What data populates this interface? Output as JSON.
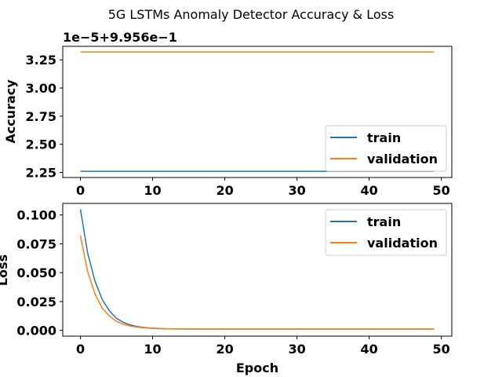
{
  "figure": {
    "suptitle": "5G LSTMs Anomaly Detector Accuracy & Loss",
    "accuracy_offset": "1e−5+9.956e−1"
  },
  "chart_data": [
    {
      "type": "line",
      "title": "",
      "xlabel": "",
      "ylabel": "Accuracy",
      "offset_text": "1e−5+9.956e−1",
      "xlim": [
        -2.45,
        51.45
      ],
      "ylim": [
        2.205,
        3.37
      ],
      "x_ticks": [
        0,
        10,
        20,
        30,
        40,
        50
      ],
      "y_ticks": [
        2.25,
        2.5,
        2.75,
        3.0,
        3.25
      ],
      "y_tick_labels": [
        "2.25",
        "2.50",
        "2.75",
        "3.00",
        "3.25"
      ],
      "legend_position": "lower-right",
      "grid": false,
      "series": [
        {
          "name": "train",
          "color": "#1f77b4",
          "x": [
            0,
            49
          ],
          "y": [
            2.26,
            2.26
          ],
          "note_units": "x1e-5 offset 0.9956"
        },
        {
          "name": "validation",
          "color": "#ff7f0e",
          "x": [
            0,
            49
          ],
          "y": [
            3.32,
            3.32
          ]
        }
      ]
    },
    {
      "type": "line",
      "title": "",
      "xlabel": "Epoch",
      "ylabel": "Loss",
      "xlim": [
        -2.45,
        51.45
      ],
      "ylim": [
        -0.005,
        0.11
      ],
      "x_ticks": [
        0,
        10,
        20,
        30,
        40,
        50
      ],
      "y_ticks": [
        0.0,
        0.025,
        0.05,
        0.075,
        0.1
      ],
      "y_tick_labels": [
        "0.000",
        "0.025",
        "0.050",
        "0.075",
        "0.100"
      ],
      "legend_position": "upper-right",
      "grid": false,
      "series": [
        {
          "name": "train",
          "color": "#1f77b4",
          "x": [
            0,
            1,
            2,
            3,
            4,
            5,
            6,
            7,
            8,
            9,
            10,
            11,
            12,
            13,
            14,
            15,
            16,
            17,
            18,
            19,
            20,
            21,
            22,
            23,
            24,
            25,
            26,
            27,
            28,
            29,
            30,
            31,
            32,
            33,
            34,
            35,
            36,
            37,
            38,
            39,
            40,
            41,
            42,
            43,
            44,
            45,
            46,
            47,
            48,
            49
          ],
          "y": [
            0.105,
            0.067,
            0.043,
            0.027,
            0.017,
            0.0105,
            0.0068,
            0.0045,
            0.0032,
            0.0024,
            0.0019,
            0.0016,
            0.0014,
            0.0013,
            0.0012,
            0.0012,
            0.0011,
            0.0011,
            0.0011,
            0.0011,
            0.0011,
            0.0011,
            0.0011,
            0.0011,
            0.0011,
            0.0011,
            0.0011,
            0.0011,
            0.0011,
            0.0011,
            0.0011,
            0.0011,
            0.0011,
            0.0011,
            0.0011,
            0.0011,
            0.0011,
            0.0011,
            0.0011,
            0.0011,
            0.0011,
            0.0011,
            0.0011,
            0.0011,
            0.0011,
            0.0011,
            0.0011,
            0.0011,
            0.0011,
            0.0011
          ]
        },
        {
          "name": "validation",
          "color": "#ff7f0e",
          "x": [
            0,
            1,
            2,
            3,
            4,
            5,
            6,
            7,
            8,
            9,
            10,
            11,
            12,
            13,
            14,
            15,
            16,
            17,
            18,
            19,
            20,
            21,
            22,
            23,
            24,
            25,
            26,
            27,
            28,
            29,
            30,
            31,
            32,
            33,
            34,
            35,
            36,
            37,
            38,
            39,
            40,
            41,
            42,
            43,
            44,
            45,
            46,
            47,
            48,
            49
          ],
          "y": [
            0.082,
            0.051,
            0.032,
            0.0195,
            0.0125,
            0.0078,
            0.0052,
            0.0036,
            0.0027,
            0.0021,
            0.0017,
            0.0015,
            0.0013,
            0.0012,
            0.0012,
            0.0011,
            0.0011,
            0.0011,
            0.0011,
            0.0011,
            0.0011,
            0.0011,
            0.0011,
            0.0011,
            0.0011,
            0.0011,
            0.0011,
            0.0011,
            0.0011,
            0.0011,
            0.0011,
            0.0011,
            0.0011,
            0.0011,
            0.0011,
            0.0011,
            0.0011,
            0.0011,
            0.0011,
            0.0011,
            0.0011,
            0.0011,
            0.0011,
            0.0011,
            0.0011,
            0.0011,
            0.0011,
            0.0011,
            0.0011,
            0.0011
          ]
        }
      ]
    }
  ]
}
